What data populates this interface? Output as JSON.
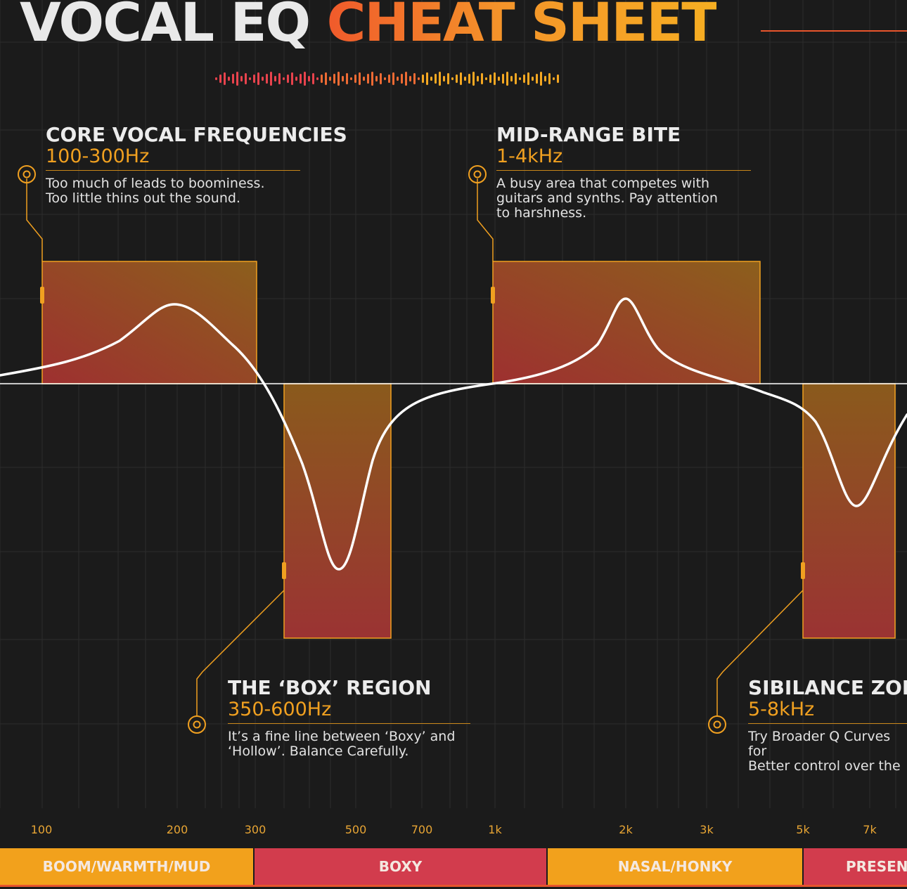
{
  "title": {
    "white": "VOCAL EQ",
    "orange": "CHEAT SHEET"
  },
  "callouts": [
    {
      "heading": "CORE VOCAL FREQUENCIES",
      "range": "100-300Hz",
      "text": "Too much of leads to boominess.\nToo little thins out the sound."
    },
    {
      "heading": "MID-RANGE BITE",
      "range": "1-4kHz",
      "text": "A busy area that competes with\nguitars and synths. Pay attention\nto harshness."
    },
    {
      "heading": "THE ‘BOX’ REGION",
      "range": "350-600Hz",
      "text": "It’s a fine line between ‘Boxy’ and\n‘Hollow’. Balance Carefully."
    },
    {
      "heading": "SIBILANCE ZONE",
      "range": "5-8kHz",
      "text": "Try Broader Q Curves for\nBetter control over the"
    }
  ],
  "axis_ticks": [
    "100",
    "200",
    "300",
    "500",
    "700",
    "1k",
    "2k",
    "3k",
    "5k",
    "7k"
  ],
  "bands": [
    {
      "label": "BOOM/WARMTH/MUD",
      "color": "#f2a11c"
    },
    {
      "label": "BOXY",
      "color": "#d23c4d"
    },
    {
      "label": "NASAL/HONKY",
      "color": "#f2a11c"
    },
    {
      "label": "PRESENCE",
      "color": "#d23c4d"
    }
  ],
  "colors": {
    "accent": "#f0a020",
    "title_orange": "#f05a2b",
    "background": "#1b1b1b"
  }
}
